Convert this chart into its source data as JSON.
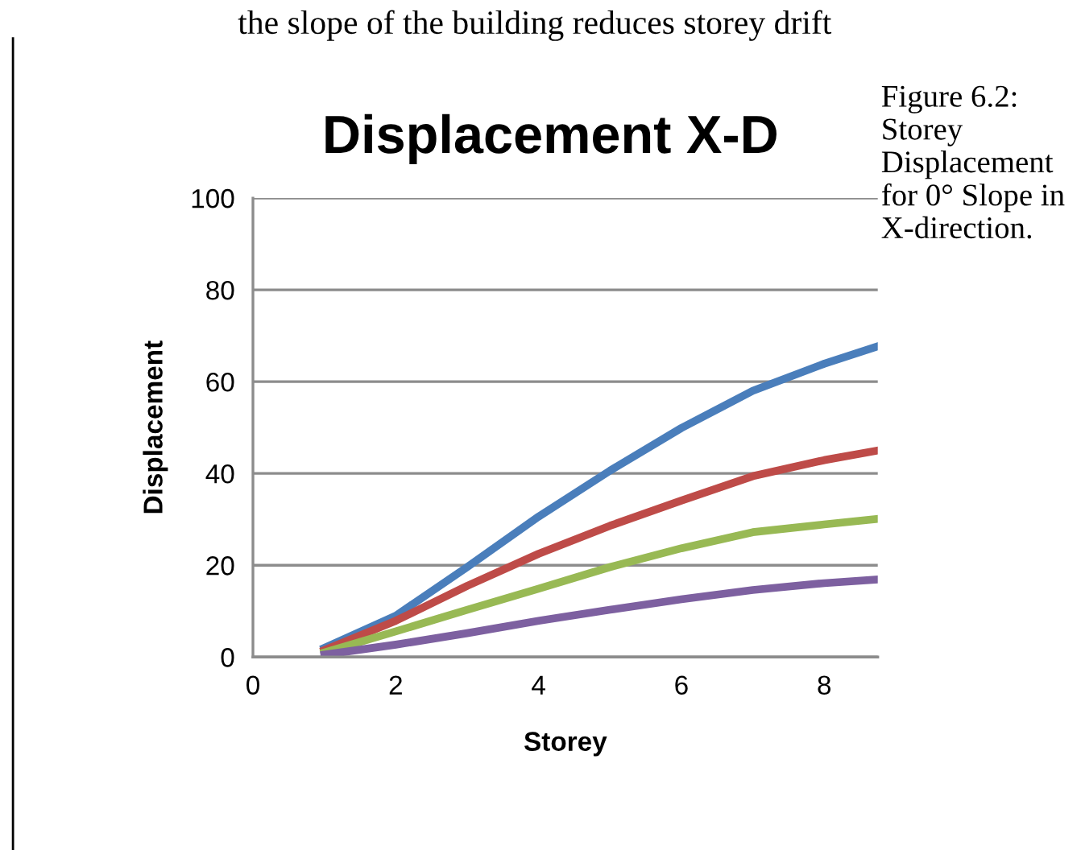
{
  "chart_data": {
    "type": "line",
    "title": "Displacement X-D",
    "xlabel": "Storey",
    "ylabel": "Displacement",
    "annotations": [
      "the slope of the building reduces storey drift",
      "Figure 6.2: Storey Displacement for 0° Slope in X-direction."
    ],
    "x": [
      1,
      2,
      3,
      4,
      5,
      6,
      7,
      8,
      8.75
    ],
    "series": [
      {
        "color": "#4a7ebb",
        "values": [
          2,
          9,
          19.6,
          30.6,
          40.6,
          49.9,
          58,
          63.9,
          67.7
        ]
      },
      {
        "color": "#be4b48",
        "values": [
          1.5,
          7.9,
          15.5,
          22.5,
          28.6,
          34.1,
          39.4,
          42.9,
          45
        ]
      },
      {
        "color": "#98b954",
        "values": [
          1,
          5.6,
          10.3,
          14.9,
          19.6,
          23.7,
          27.2,
          28.9,
          30.1
        ]
      },
      {
        "color": "#7d60a0",
        "values": [
          0.5,
          2.7,
          5.2,
          7.9,
          10.3,
          12.6,
          14.6,
          16.1,
          16.9
        ]
      }
    ],
    "xlim": [
      0,
      8.75
    ],
    "xticks": [
      0,
      2,
      4,
      6,
      8
    ],
    "ylim": [
      0,
      100
    ],
    "yticks": [
      0,
      20,
      40,
      60,
      80,
      100
    ],
    "grid": "y",
    "legend": false,
    "marker": "none",
    "line_style": "solid"
  }
}
